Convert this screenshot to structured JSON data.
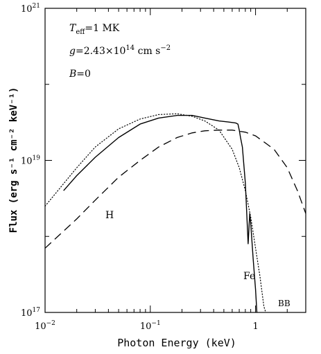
{
  "chart_data": {
    "type": "line",
    "xlabel": "Photon Energy (keV)",
    "ylabel": "Flux (erg s⁻¹ cm⁻² keV⁻¹)",
    "xscale": "log",
    "yscale": "log",
    "xlim": [
      0.01,
      3.0
    ],
    "ylim": [
      1e+17,
      1e+21
    ],
    "x_ticks": [
      {
        "value": 0.01,
        "base": "10",
        "exp": "−2"
      },
      {
        "value": 0.1,
        "base": "10",
        "exp": "−1"
      },
      {
        "value": 1,
        "base": "1",
        "exp": ""
      }
    ],
    "y_ticks": [
      {
        "value": 1e+17,
        "base": "10",
        "exp": "17"
      },
      {
        "value": 1e+19,
        "base": "10",
        "exp": "19"
      },
      {
        "value": 1e+21,
        "base": "10",
        "exp": "21"
      }
    ],
    "annotations": {
      "teff": {
        "T": "T",
        "sub": "eff",
        "rest": "=1 MK"
      },
      "gravity": {
        "g": "g",
        "rest": "=2.43×10",
        "exp": "14",
        "unit": " cm s",
        "unit_exp": "−2"
      },
      "field": {
        "B": "B",
        "rest": "=0"
      }
    },
    "series": [
      {
        "name": "Fe",
        "style": "solid",
        "x": [
          0.015,
          0.02,
          0.03,
          0.05,
          0.08,
          0.12,
          0.18,
          0.25,
          0.33,
          0.45,
          0.55,
          0.6,
          0.65,
          0.68,
          0.7,
          0.72,
          0.75,
          0.8,
          0.85,
          0.88,
          0.9,
          0.95,
          1.0,
          1.03
        ],
        "y": [
          4e+18,
          6.3e+18,
          1.1e+19,
          2e+19,
          3e+19,
          3.6e+19,
          3.9e+19,
          3.9e+19,
          3.6e+19,
          3.3e+19,
          3.2e+19,
          3.15e+19,
          3.1e+19,
          3e+19,
          2.5e+19,
          2e+19,
          1.5e+19,
          5e+18,
          8e+17,
          2e+18,
          1.5e+18,
          5e+17,
          2e+17,
          1e+17
        ]
      },
      {
        "name": "BB",
        "style": "dotted",
        "x": [
          0.01,
          0.02,
          0.03,
          0.05,
          0.08,
          0.12,
          0.18,
          0.25,
          0.33,
          0.45,
          0.6,
          0.7,
          0.8,
          0.9,
          1.0,
          1.1,
          1.2,
          1.25
        ],
        "y": [
          2.5e+18,
          8e+18,
          1.5e+19,
          2.6e+19,
          3.5e+19,
          4e+19,
          4.1e+19,
          3.8e+19,
          3.3e+19,
          2.5e+19,
          1.4e+19,
          8e+18,
          4e+18,
          1.8e+18,
          7e+17,
          3e+17,
          1.2e+17,
          1e+17
        ]
      },
      {
        "name": "H",
        "style": "dashed",
        "x": [
          0.01,
          0.02,
          0.03,
          0.05,
          0.08,
          0.12,
          0.18,
          0.25,
          0.33,
          0.45,
          0.6,
          0.8,
          1.0,
          1.5,
          2.0,
          2.5,
          3.0
        ],
        "y": [
          7e+17,
          1.7e+18,
          3e+18,
          6e+18,
          1e+19,
          1.5e+19,
          2e+19,
          2.3e+19,
          2.45e+19,
          2.5e+19,
          2.5e+19,
          2.35e+19,
          2.1e+19,
          1.4e+19,
          8e+18,
          4e+18,
          2e+18
        ]
      }
    ],
    "series_labels": [
      "H",
      "Fe",
      "BB"
    ],
    "grid": false,
    "legend": "none"
  }
}
